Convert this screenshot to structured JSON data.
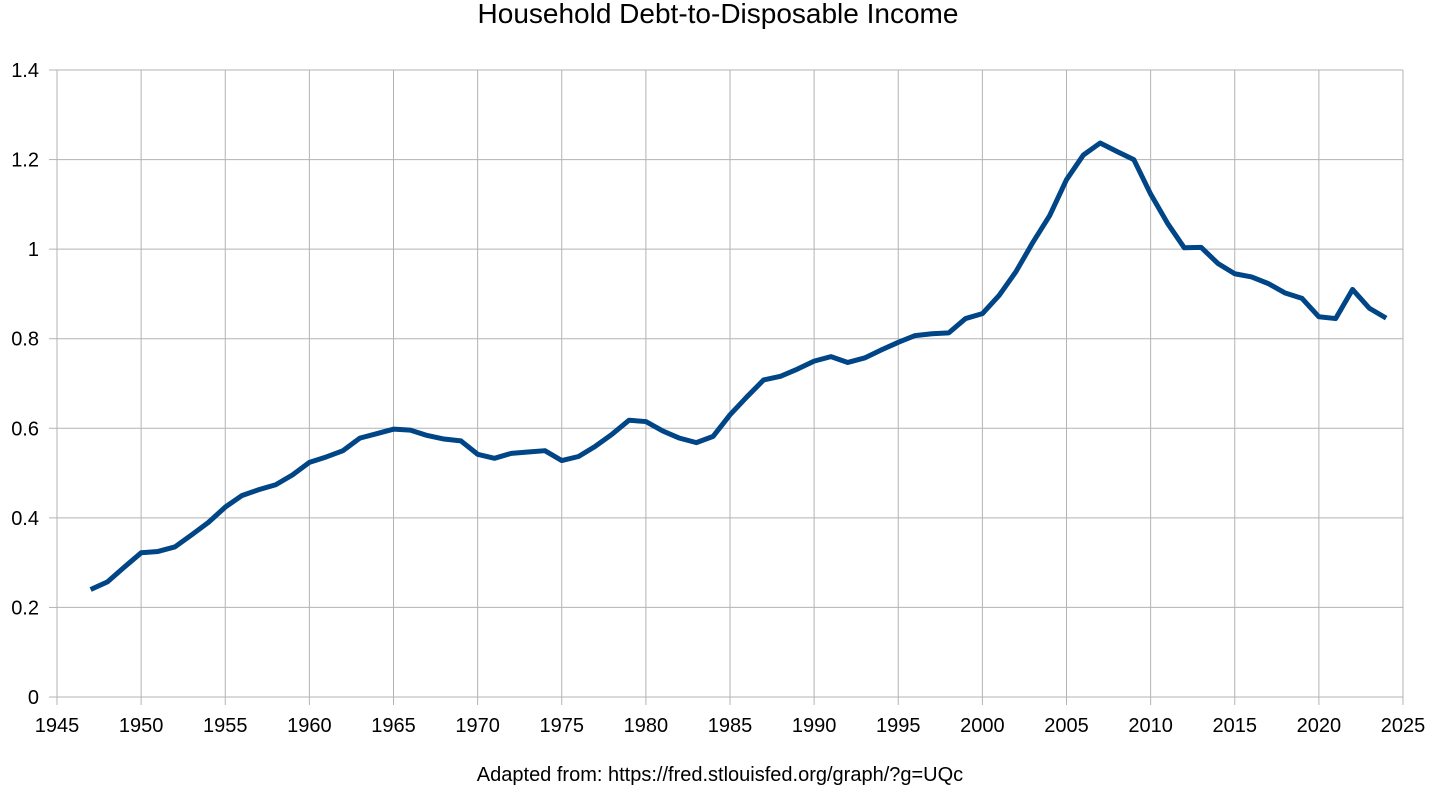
{
  "chart_data": {
    "type": "line",
    "title": "Household Debt-to-Disposable Income",
    "xlabel": "",
    "ylabel": "",
    "xlim": [
      1945,
      2025
    ],
    "ylim": [
      0,
      1.4
    ],
    "x_ticks": [
      "1945",
      "1950",
      "1955",
      "1960",
      "1965",
      "1970",
      "1975",
      "1980",
      "1985",
      "1990",
      "1995",
      "2000",
      "2005",
      "2010",
      "2015",
      "2020",
      "2025"
    ],
    "y_ticks": [
      "0",
      "0.2",
      "0.4",
      "0.6",
      "0.8",
      "1",
      "1.2",
      "1.4"
    ],
    "grid": true,
    "legend": "none",
    "line_color": "#004586",
    "series": [
      {
        "x": [
          1947,
          1948,
          1949,
          1950,
          1951,
          1952,
          1953,
          1954,
          1955,
          1956,
          1957,
          1958,
          1959,
          1960,
          1961,
          1962,
          1963,
          1964,
          1965,
          1966,
          1967,
          1968,
          1969,
          1970,
          1971,
          1972,
          1973,
          1974,
          1975,
          1976,
          1977,
          1978,
          1979,
          1980,
          1981,
          1982,
          1983,
          1984,
          1985,
          1986,
          1987,
          1988,
          1989,
          1990,
          1991,
          1992,
          1993,
          1994,
          1995,
          1996,
          1997,
          1998,
          1999,
          2000,
          2001,
          2002,
          2003,
          2004,
          2005,
          2006,
          2007,
          2008,
          2009,
          2010,
          2011,
          2012,
          2013,
          2014,
          2015,
          2016,
          2017,
          2018,
          2019,
          2020,
          2021,
          2022,
          2023,
          2024
        ],
        "values": [
          0.24,
          0.257,
          0.29,
          0.322,
          0.325,
          0.335,
          0.362,
          0.39,
          0.424,
          0.45,
          0.463,
          0.474,
          0.496,
          0.524,
          0.536,
          0.55,
          0.578,
          0.588,
          0.598,
          0.596,
          0.584,
          0.576,
          0.572,
          0.542,
          0.533,
          0.544,
          0.547,
          0.55,
          0.528,
          0.537,
          0.56,
          0.587,
          0.618,
          0.615,
          0.594,
          0.578,
          0.568,
          0.582,
          0.63,
          0.67,
          0.708,
          0.716,
          0.732,
          0.75,
          0.76,
          0.747,
          0.757,
          0.775,
          0.792,
          0.807,
          0.811,
          0.813,
          0.845,
          0.856,
          0.897,
          0.95,
          1.015,
          1.075,
          1.155,
          1.21,
          1.237,
          1.218,
          1.2,
          1.123,
          1.058,
          1.003,
          1.004,
          0.968,
          0.945,
          0.938,
          0.923,
          0.902,
          0.89,
          0.849,
          0.845,
          0.91,
          0.868,
          0.846
        ]
      }
    ],
    "source_note": "Adapted from: https://fred.stlouisfed.org/graph/?g=UQc"
  }
}
